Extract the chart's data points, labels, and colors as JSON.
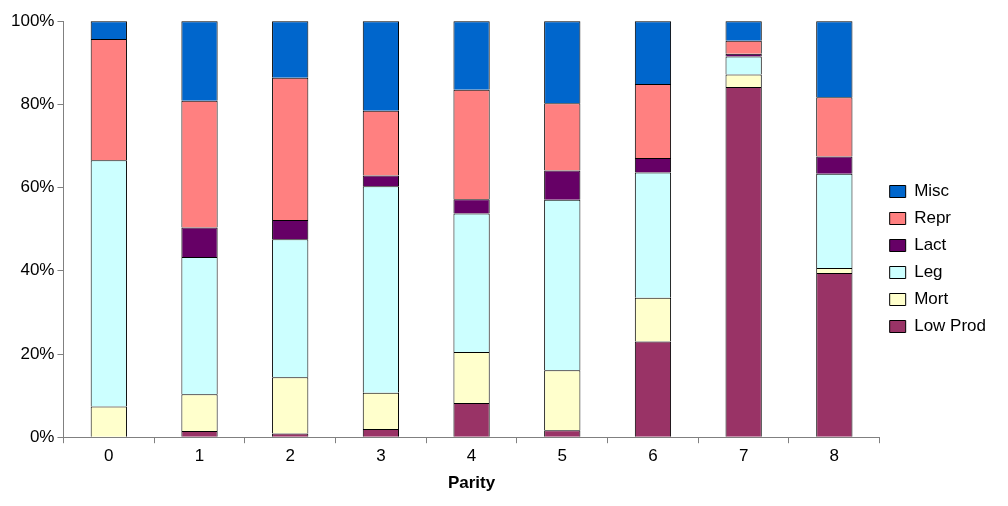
{
  "chart_data": {
    "type": "bar",
    "stacked": true,
    "xlabel": "Parity",
    "categories": [
      "0",
      "1",
      "2",
      "3",
      "4",
      "5",
      "6",
      "7",
      "8"
    ],
    "series": [
      {
        "name": "Low Prod",
        "color": "#993366",
        "values": [
          0,
          1.5,
          0.9,
          2.0,
          8.2,
          1.7,
          23.0,
          84.2,
          39.5
        ]
      },
      {
        "name": "Mort",
        "color": "#ffffcc",
        "values": [
          7.4,
          8.8,
          13.5,
          8.7,
          12.3,
          14.4,
          10.5,
          3.0,
          1.2
        ]
      },
      {
        "name": "Leg",
        "color": "#ccffff",
        "values": [
          59.2,
          33.0,
          33.2,
          49.6,
          33.3,
          41.0,
          30.1,
          4.3,
          22.6
        ]
      },
      {
        "name": "Lact",
        "color": "#660066",
        "values": [
          0,
          7.1,
          4.6,
          2.6,
          3.4,
          7.0,
          3.5,
          0.7,
          4.2
        ]
      },
      {
        "name": "Repr",
        "color": "#ff8080",
        "values": [
          29.1,
          30.5,
          34.2,
          15.6,
          26.3,
          16.2,
          17.8,
          3.1,
          14.2
        ]
      },
      {
        "name": "Misc",
        "color": "#0066cc",
        "values": [
          4.3,
          19.1,
          13.6,
          21.5,
          16.5,
          19.7,
          15.1,
          4.7,
          18.3
        ]
      }
    ],
    "ylim": [
      0,
      100
    ],
    "yticks": [
      {
        "value": 0,
        "label": "0%"
      },
      {
        "value": 20,
        "label": "20%"
      },
      {
        "value": 40,
        "label": "40%"
      },
      {
        "value": 60,
        "label": "60%"
      },
      {
        "value": 80,
        "label": "80%"
      },
      {
        "value": 100,
        "label": "100%"
      }
    ],
    "grid": false,
    "legend": "right"
  }
}
